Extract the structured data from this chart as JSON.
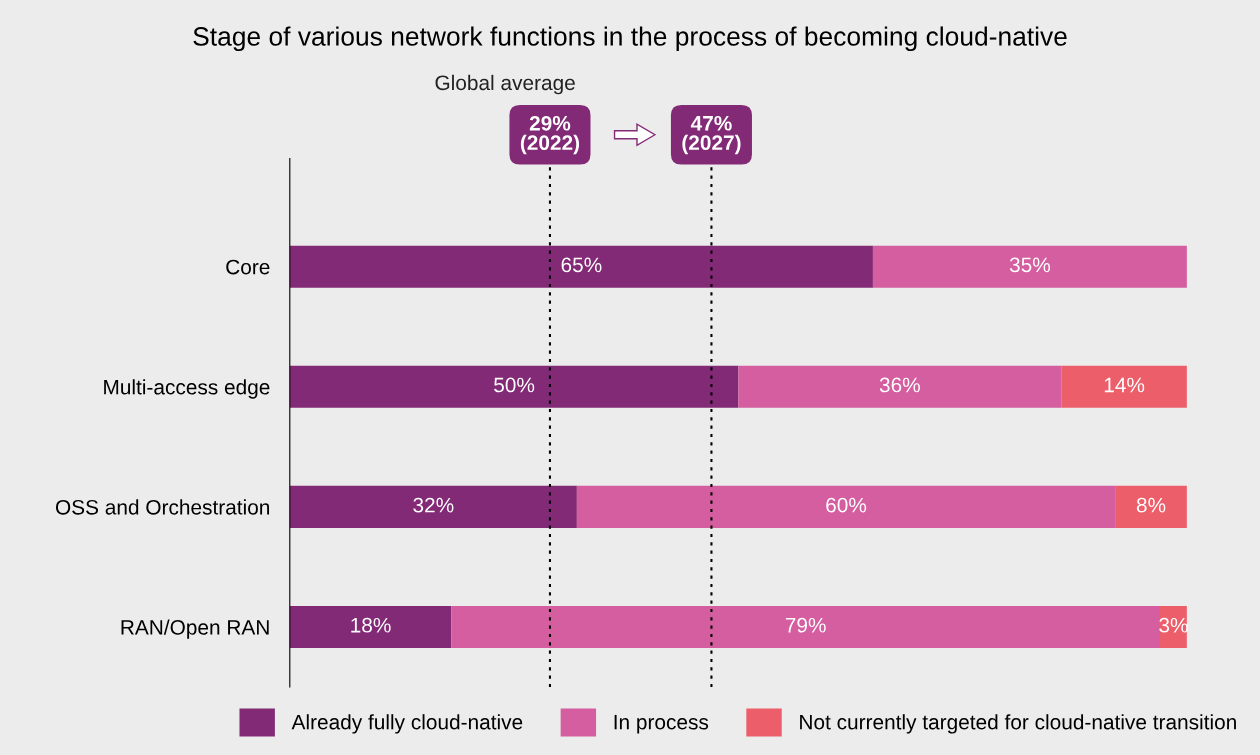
{
  "chart_data": {
    "type": "bar",
    "orientation": "horizontal",
    "stacked": true,
    "title": "Stage of various network functions in the process of becoming cloud-native",
    "categories": [
      "Core",
      "Multi-access edge",
      "OSS and Orchestration",
      "RAN/Open RAN"
    ],
    "series": [
      {
        "name": "Already fully cloud-native",
        "color": "#832a76",
        "values": [
          65,
          50,
          32,
          18
        ]
      },
      {
        "name": "In process",
        "color": "#d45ea0",
        "values": [
          35,
          36,
          60,
          79
        ]
      },
      {
        "name": "Not currently targeted for cloud-native transition",
        "color": "#ec5f6a",
        "values": [
          0,
          14,
          8,
          3
        ]
      }
    ],
    "value_labels": [
      [
        "65%",
        "50%",
        "32%",
        "18%"
      ],
      [
        "35%",
        "36%",
        "60%",
        "79%"
      ],
      [
        null,
        "14%",
        "8%",
        "3%"
      ]
    ],
    "xlim": [
      0,
      100
    ],
    "tick_labels": "y",
    "ref_lines": [
      {
        "axis": "x",
        "value": 29,
        "label": "29%\n(2022)",
        "color": "#000000",
        "line_style": "dotted"
      },
      {
        "axis": "x",
        "value": 47,
        "label": "47%\n(2027)",
        "color": "#000000",
        "line_style": "dotted"
      }
    ],
    "annotations": [
      "Global average"
    ],
    "legend": "bottom",
    "grid": false
  }
}
